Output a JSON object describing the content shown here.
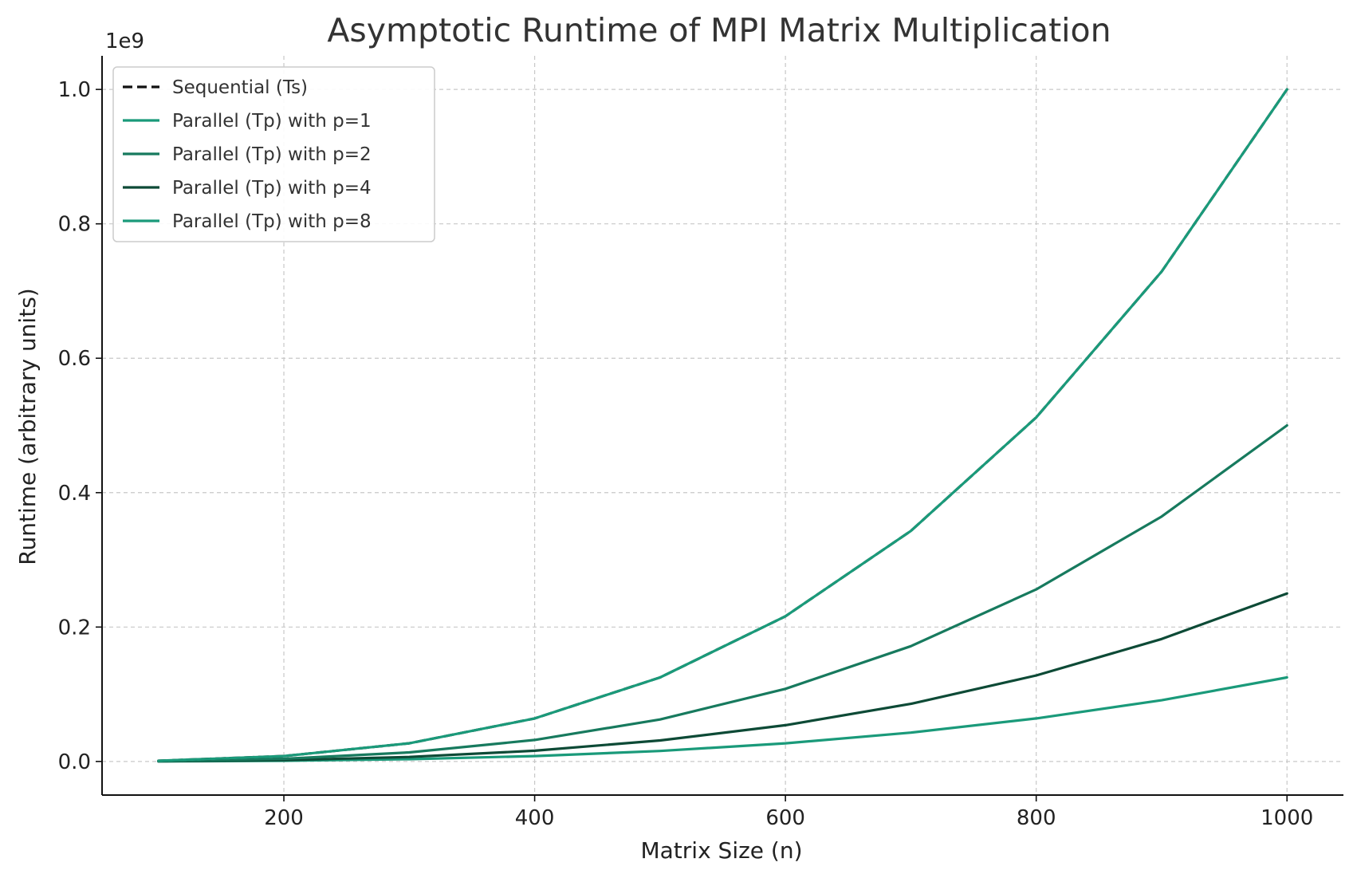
{
  "chart_data": {
    "type": "line",
    "title": "Asymptotic Runtime of MPI Matrix Multiplication",
    "xlabel": "Matrix Size (n)",
    "ylabel": "Runtime (arbitrary units)",
    "y_offset_label": "1e9",
    "xlim": [
      55,
      1045
    ],
    "ylim": [
      -0.05,
      1.05
    ],
    "x_ticks": [
      200,
      400,
      600,
      800,
      1000
    ],
    "x_tick_labels": [
      "200",
      "400",
      "600",
      "800",
      "1000"
    ],
    "y_ticks": [
      0.0,
      0.2,
      0.4,
      0.6,
      0.8,
      1.0
    ],
    "y_tick_labels": [
      "0.0",
      "0.2",
      "0.4",
      "0.6",
      "0.8",
      "1.0"
    ],
    "grid": true,
    "legend_position": "top-left",
    "x": [
      100,
      200,
      300,
      400,
      500,
      600,
      700,
      800,
      900,
      1000
    ],
    "series": [
      {
        "name": "Sequential (Ts)",
        "color": "#111111",
        "dashed": true,
        "values": [
          0.001,
          0.008,
          0.027,
          0.064,
          0.125,
          0.216,
          0.343,
          0.512,
          0.729,
          1.0
        ]
      },
      {
        "name": "Parallel (Tp) with p=1",
        "color": "#1a9a7a",
        "dashed": false,
        "values": [
          0.001,
          0.008,
          0.027,
          0.064,
          0.125,
          0.216,
          0.343,
          0.512,
          0.729,
          1.0
        ]
      },
      {
        "name": "Parallel (Tp) with p=2",
        "color": "#177a5e",
        "dashed": false,
        "values": [
          0.0005,
          0.004,
          0.0135,
          0.032,
          0.0625,
          0.108,
          0.1715,
          0.256,
          0.3645,
          0.5
        ]
      },
      {
        "name": "Parallel (Tp) with p=4",
        "color": "#0d4a36",
        "dashed": false,
        "values": [
          0.00025,
          0.002,
          0.00675,
          0.016,
          0.03125,
          0.054,
          0.08575,
          0.128,
          0.18225,
          0.25
        ]
      },
      {
        "name": "Parallel (Tp) with p=8",
        "color": "#1a9a7a",
        "dashed": false,
        "values": [
          0.000125,
          0.001,
          0.003375,
          0.008,
          0.015625,
          0.027,
          0.042875,
          0.064,
          0.091125,
          0.125
        ]
      }
    ]
  }
}
